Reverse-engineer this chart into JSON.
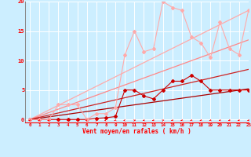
{
  "xlabel": "Vent moyen/en rafales ( km/h )",
  "ylim": [
    -0.5,
    20
  ],
  "xlim": [
    -0.5,
    23
  ],
  "yticks": [
    0,
    5,
    10,
    15,
    20
  ],
  "xticks": [
    0,
    1,
    2,
    3,
    4,
    5,
    6,
    7,
    8,
    9,
    10,
    11,
    12,
    13,
    14,
    15,
    16,
    17,
    18,
    19,
    20,
    21,
    22,
    23
  ],
  "bg_color": "#cceeff",
  "grid_color": "#ffffff",
  "straight_lines": [
    {
      "x0": 0,
      "y0": 0,
      "x1": 23,
      "y1": 18.5,
      "color": "#ffaaaa",
      "lw": 0.9
    },
    {
      "x0": 0,
      "y0": 0,
      "x1": 23,
      "y1": 13.5,
      "color": "#ff8888",
      "lw": 0.9
    },
    {
      "x0": 0,
      "y0": 0,
      "x1": 23,
      "y1": 8.5,
      "color": "#cc2222",
      "lw": 0.9
    },
    {
      "x0": 0,
      "y0": 0,
      "x1": 23,
      "y1": 5.2,
      "color": "#aa0000",
      "lw": 0.9
    }
  ],
  "zigzag_lines": [
    {
      "x": [
        0,
        1,
        2,
        3,
        4,
        5,
        6,
        7,
        8,
        9,
        10,
        11,
        12,
        13,
        14,
        15,
        16,
        17,
        18,
        19,
        20,
        21,
        22,
        23
      ],
      "y": [
        0,
        0,
        0,
        0,
        0,
        0,
        0,
        0.2,
        0.3,
        0.5,
        5.0,
        5.0,
        4.0,
        3.5,
        5.0,
        6.5,
        6.5,
        7.5,
        6.5,
        5.0,
        5.0,
        5.0,
        5.0,
        5.0
      ],
      "color": "#cc0000",
      "lw": 0.8,
      "marker": "D",
      "ms": 2.0
    },
    {
      "x": [
        0,
        1,
        2,
        3,
        4,
        5,
        6,
        7,
        8,
        9,
        10,
        11,
        12,
        13,
        14,
        15,
        16,
        17,
        18,
        19,
        20,
        21,
        22,
        23
      ],
      "y": [
        0,
        0,
        0,
        2.5,
        2.5,
        2.5,
        0,
        1.0,
        1.0,
        2.0,
        11.0,
        15.0,
        11.5,
        12.0,
        20.0,
        19.0,
        18.5,
        14.0,
        13.0,
        10.5,
        16.5,
        12.0,
        11.0,
        18.5
      ],
      "color": "#ffaaaa",
      "lw": 0.8,
      "marker": "D",
      "ms": 2.0
    }
  ],
  "wind_dir_angles": [
    225,
    225,
    225,
    225,
    225,
    315,
    270,
    45,
    270,
    225,
    270,
    45,
    225,
    225,
    45,
    225,
    225,
    225,
    225,
    225,
    225,
    225,
    225,
    225
  ]
}
